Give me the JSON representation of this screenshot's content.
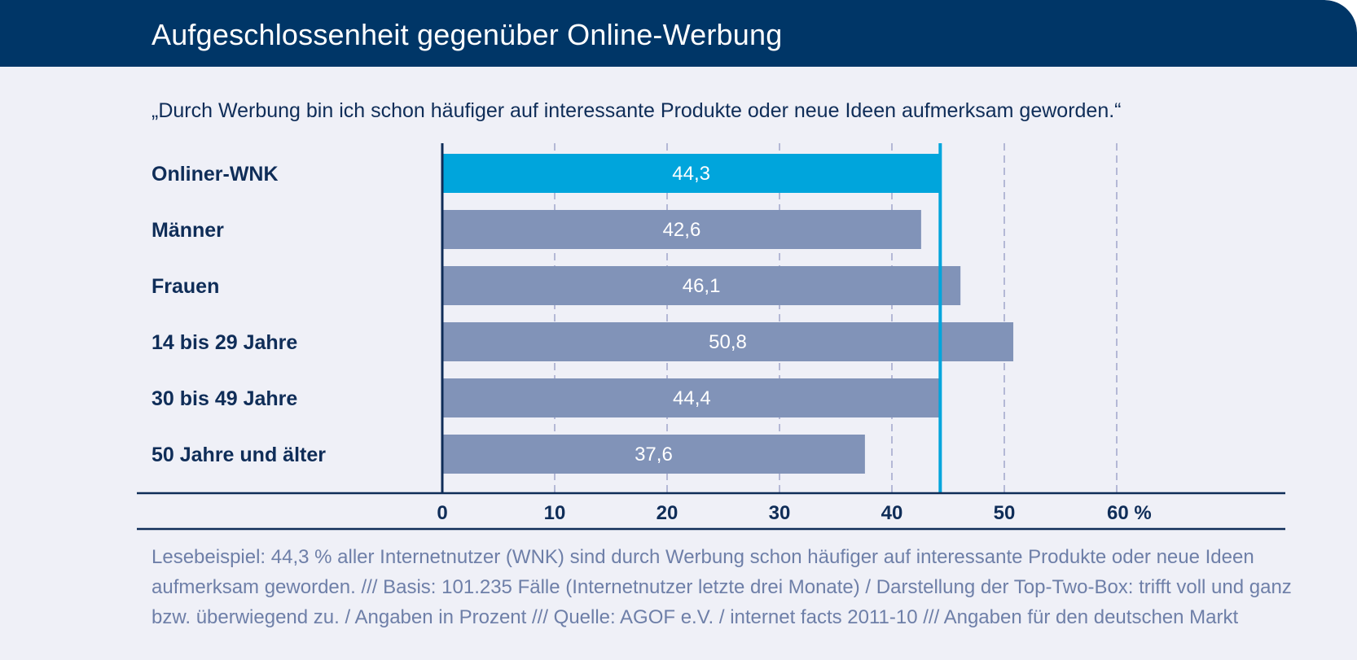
{
  "header": {
    "title": "Aufgeschlossenheit gegenüber Online-Werbung"
  },
  "colors": {
    "header_bg": "#003667",
    "background": "#eff0f7",
    "highlight_bar": "#00a5dc",
    "bar": "#8193b8",
    "text": "#0f2d58",
    "grid": "#b4b8d6",
    "footnote": "#6e7fa8"
  },
  "chart_data": {
    "type": "bar",
    "orientation": "horizontal",
    "subtitle": "„Durch Werbung bin ich schon häufiger auf interessante Produkte oder neue Ideen aufmerksam geworden.“",
    "categories": [
      "Onliner-WNK",
      "Männer",
      "Frauen",
      "14 bis 29 Jahre",
      "30 bis 49 Jahre",
      "50 Jahre und älter"
    ],
    "values": [
      44.3,
      42.6,
      46.1,
      50.8,
      44.4,
      37.6
    ],
    "value_labels": [
      "44,3",
      "42,6",
      "46,1",
      "50,8",
      "44,4",
      "37,6"
    ],
    "highlight_index": 0,
    "reference_line": 44.3,
    "xlim": [
      0,
      60
    ],
    "ticks": [
      0,
      10,
      20,
      30,
      40,
      50,
      60
    ],
    "tick_labels": [
      "0",
      "10",
      "20",
      "30",
      "40",
      "50",
      "60 %"
    ],
    "grid": "dashed vertical"
  },
  "footnote": "Lesebeispiel: 44,3 % aller Internetnutzer (WNK) sind durch Werbung schon häufiger auf interessante Produkte oder neue Ideen aufmerksam geworden. /// Basis: 101.235 Fälle (Internetnutzer letzte drei Monate) / Darstellung der Top-Two-Box: trifft voll und ganz bzw. überwiegend zu. / Angaben in Prozent /// Quelle: AGOF e.V. / internet facts 2011-10 /// Angaben für den deutschen Markt"
}
